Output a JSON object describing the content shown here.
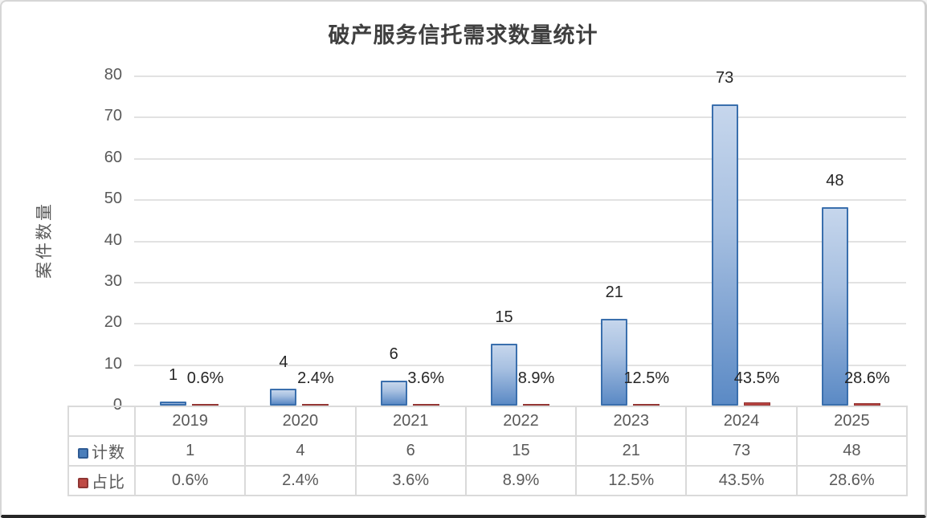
{
  "chart_data": {
    "type": "bar",
    "title": "破产服务信托需求数量统计",
    "xlabel": "",
    "ylabel": "案件数量",
    "ylim": [
      0,
      80
    ],
    "ytick_step": 10,
    "yticks": [
      "0",
      "10",
      "20",
      "30",
      "40",
      "50",
      "60",
      "70",
      "80"
    ],
    "grid": true,
    "legend_position": "data-table-row-headers",
    "categories": [
      "2019",
      "2020",
      "2021",
      "2022",
      "2023",
      "2024",
      "2025"
    ],
    "series": [
      {
        "name": "计数",
        "values": [
          1,
          4,
          6,
          15,
          21,
          73,
          48
        ],
        "labels": [
          "1",
          "4",
          "6",
          "15",
          "21",
          "73",
          "48"
        ],
        "color": "#4a7ebb",
        "border_color": "#2f5b94"
      },
      {
        "name": "占比",
        "values": [
          0.6,
          2.4,
          3.6,
          8.9,
          12.5,
          43.5,
          28.6
        ],
        "labels": [
          "0.6%",
          "2.4%",
          "3.6%",
          "8.9%",
          "12.5%",
          "43.5%",
          "28.6%"
        ],
        "color": "#bf4a44",
        "border_color": "#8f3633"
      }
    ],
    "colors": {
      "grid": "#e2e2e2",
      "axis_text": "#595959",
      "data_label_text": "#262626",
      "count_bar_fill_top": "#c6d6ec",
      "count_bar_fill_bottom": "#5b8ac5",
      "count_bar_border": "#3a6fad",
      "pct_bar_fill": "#b94441",
      "pct_bar_border": "#943634"
    }
  }
}
